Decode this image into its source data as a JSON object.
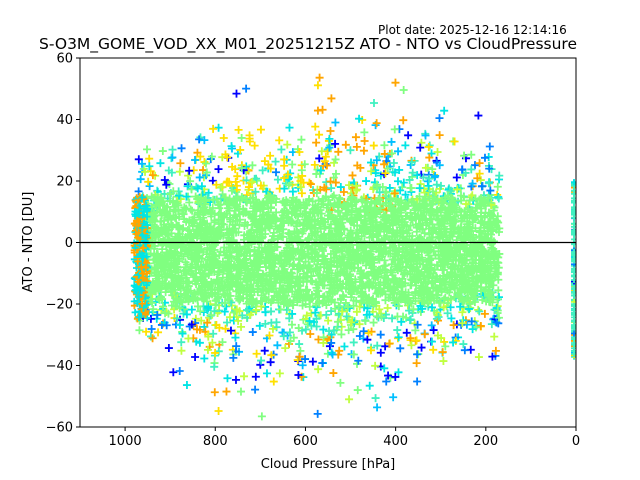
{
  "chart_data": {
    "type": "scatter",
    "plot_date": "Plot date: 2025-12-16 12:14:16",
    "title": "S-O3M_GOME_VOD_XX_M01_20251215Z ATO - NTO vs CloudPressure",
    "xlabel": "Cloud Pressure [hPa]",
    "ylabel": "ATO - NTO [DU]",
    "xlim": [
      1100,
      0
    ],
    "ylim": [
      -60,
      60
    ],
    "x_inverted": true,
    "xticks": [
      "1000",
      "800",
      "600",
      "400",
      "200",
      "0"
    ],
    "xtick_values": [
      1000,
      800,
      600,
      400,
      200,
      0
    ],
    "yticks": [
      "60",
      "40",
      "20",
      "0",
      "−20",
      "−40",
      "−60"
    ],
    "ytick_values": [
      60,
      40,
      20,
      0,
      -20,
      -40,
      -60
    ],
    "reference_line_y": 0,
    "marker": "+",
    "grid": false,
    "colors": [
      "#0000ff",
      "#0080ff",
      "#00bfff",
      "#00e5e5",
      "#40f0c0",
      "#80ff80",
      "#c0ff40",
      "#ffe000",
      "#ffa500"
    ],
    "dense_core_color": "#80ff80",
    "density_summary": {
      "x_range": [
        970,
        170
      ],
      "core_y_range": [
        -20,
        15
      ],
      "scatter_y_range": [
        -58,
        58
      ],
      "secondary_column_x": 0,
      "secondary_column_y_range": [
        -38,
        20
      ]
    }
  }
}
